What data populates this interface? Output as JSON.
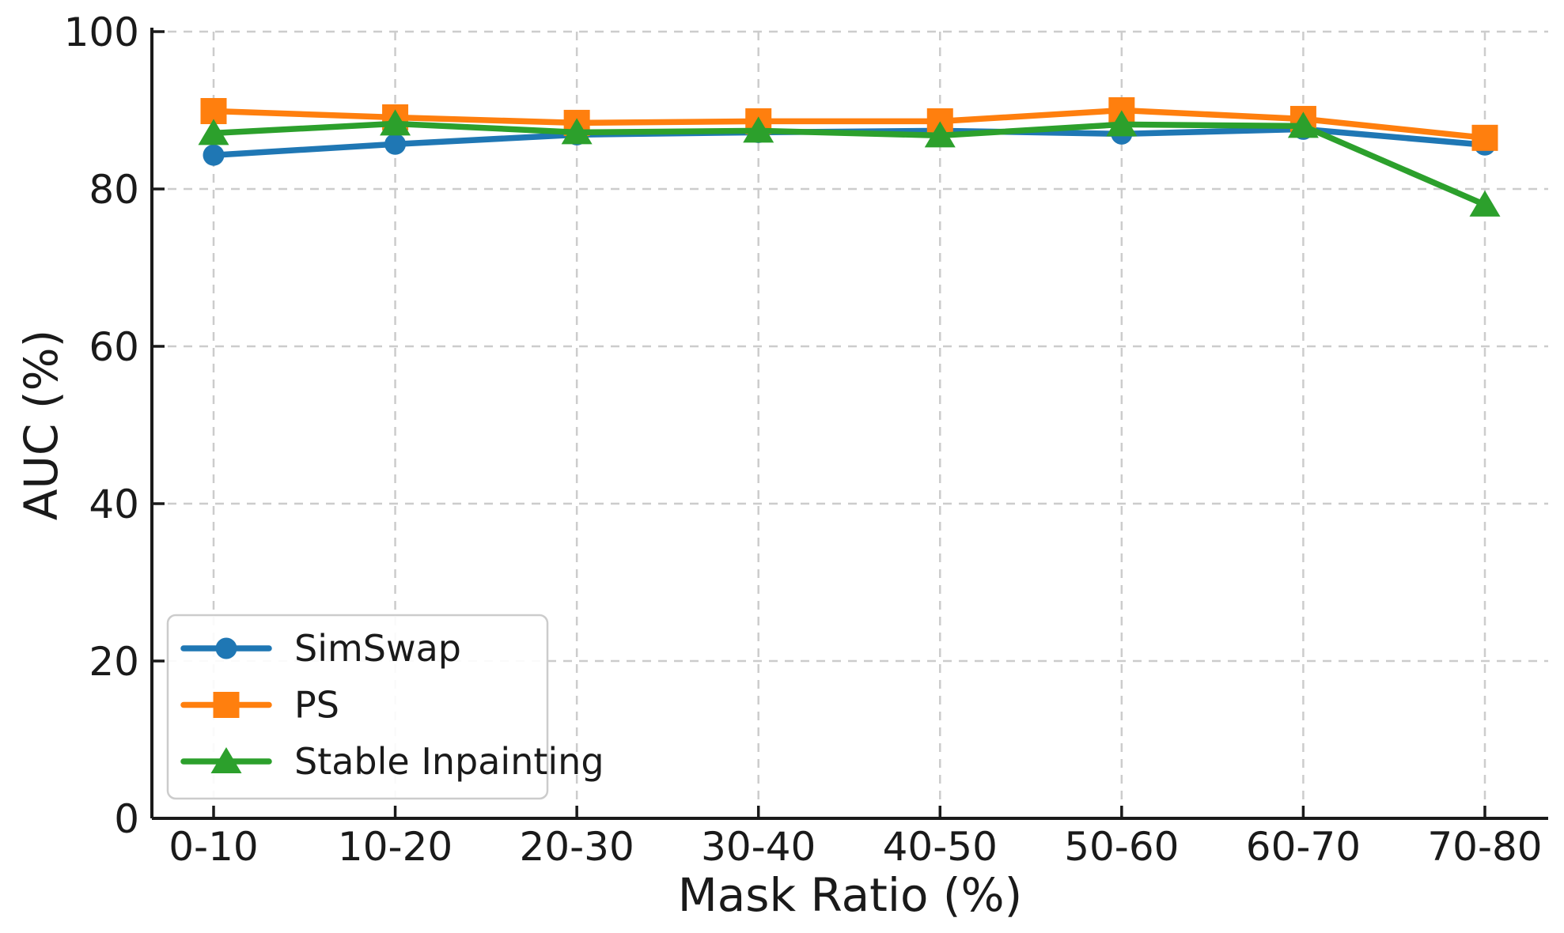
{
  "figure": {
    "background_color": "#ffffff",
    "axis_color": "#1a1a1a",
    "grid_color": "#cccccc",
    "tick_label_color": "#1a1a1a"
  },
  "chart_data": {
    "type": "line",
    "title": "",
    "xlabel": "Mask Ratio (%)",
    "ylabel": "AUC (%)",
    "categories": [
      "0-10",
      "10-20",
      "20-30",
      "30-40",
      "40-50",
      "50-60",
      "60-70",
      "70-80"
    ],
    "ylim": [
      0,
      100
    ],
    "yticks": [
      0,
      20,
      40,
      60,
      80,
      100
    ],
    "ytick_labels": [
      "0",
      "20",
      "40",
      "60",
      "80",
      "100"
    ],
    "grid": true,
    "grid_style": "dashed",
    "legend_position": "lower left",
    "series": [
      {
        "name": "SimSwap",
        "color": "#1f77b4",
        "marker": "circle",
        "values": [
          84.3,
          85.7,
          86.9,
          87.2,
          87.4,
          87.0,
          87.6,
          85.6
        ]
      },
      {
        "name": "PS",
        "color": "#ff7f0e",
        "marker": "square",
        "values": [
          89.9,
          89.1,
          88.4,
          88.6,
          88.6,
          90.0,
          88.9,
          86.5
        ]
      },
      {
        "name": "Stable Inpainting",
        "color": "#2ca02c",
        "marker": "triangle",
        "values": [
          87.1,
          88.3,
          87.2,
          87.4,
          86.8,
          88.2,
          88.0,
          78.0
        ]
      }
    ]
  }
}
